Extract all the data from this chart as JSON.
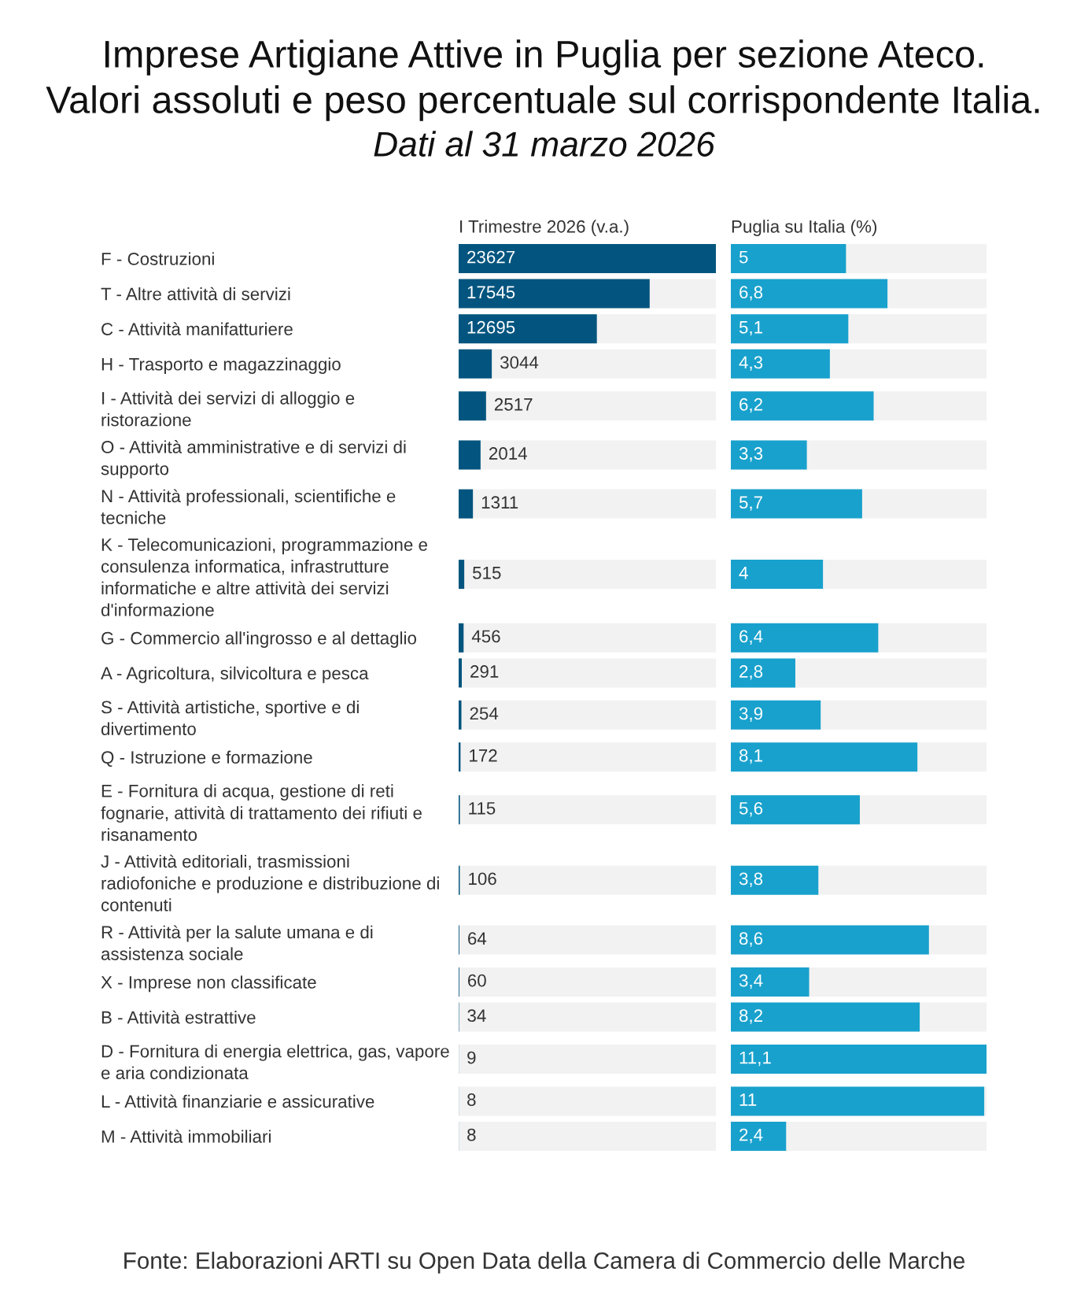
{
  "chart_data": [
    {
      "type": "bar",
      "orientation": "horizontal",
      "title": "Imprese Artigiane Attive in Puglia per sezione Ateco.\nValori assoluti e peso percentuale sul corrispondente Italia.",
      "subtitle": "Dati al 31 marzo 2026",
      "xlabel": "I Trimestre 2026 (v.a.)",
      "categories": [
        "F - Costruzioni",
        "T - Altre attività di servizi",
        "C - Attività manifatturiere",
        "H - Trasporto e magazzinaggio",
        "I - Attività dei servizi di alloggio e\nristorazione",
        "O - Attività amministrative e di servizi di\nsupporto",
        "N - Attività professionali, scientifiche e\ntecniche",
        "K - Telecomunicazioni, programmazione e\nconsulenza informatica, infrastrutture\ninformatiche e altre attività dei servizi\nd'informazione",
        "G - Commercio all'ingrosso e al dettaglio",
        "A - Agricoltura, silvicoltura e pesca",
        "S - Attività artistiche, sportive e di\ndivertimento",
        "Q - Istruzione e formazione",
        "E - Fornitura di acqua, gestione di reti\nfognarie, attività di trattamento dei rifiuti e\nrisanamento",
        "J - Attività editoriali, trasmissioni\nradiofoniche e produzione e distribuzione di\ncontenuti",
        "R - Attività per la salute umana e di\nassistenza sociale",
        "X - Imprese non classificate",
        "B - Attività estrattive",
        "D - Fornitura di energia elettrica, gas, vapore\ne aria condizionata",
        "L - Attività finanziarie e assicurative",
        "M - Attività immobiliari"
      ],
      "values": [
        23627,
        17545,
        12695,
        3044,
        2517,
        2014,
        1311,
        515,
        456,
        291,
        254,
        172,
        115,
        106,
        64,
        60,
        34,
        9,
        8,
        8
      ],
      "color": "#03557f",
      "data_labels": true,
      "tick_labels": "y",
      "bands": [
        {
          "axis": "x",
          "from": 0,
          "to": 23627,
          "color": "#f2f2f2"
        }
      ],
      "annotations": [
        "Fonte: Elaborazioni ARTI su Open Data della Camera di Commercio delle Marche"
      ]
    },
    {
      "type": "bar",
      "orientation": "horizontal",
      "xlabel": "Puglia su Italia (%)",
      "categories": [
        "F - Costruzioni",
        "T - Altre attività di servizi",
        "C - Attività manifatturiere",
        "H - Trasporto e magazzinaggio",
        "I - Attività dei servizi di alloggio e\nristorazione",
        "O - Attività amministrative e di servizi di\nsupporto",
        "N - Attività professionali, scientifiche e\ntecniche",
        "K - Telecomunicazioni, programmazione e\nconsulenza informatica, infrastrutture\ninformatiche e altre attività dei servizi\nd'informazione",
        "G - Commercio all'ingrosso e al dettaglio",
        "A - Agricoltura, silvicoltura e pesca",
        "S - Attività artistiche, sportive e di\ndivertimento",
        "Q - Istruzione e formazione",
        "E - Fornitura di acqua, gestione di reti\nfognarie, attività di trattamento dei rifiuti e\nrisanamento",
        "J - Attività editoriali, trasmissioni\nradiofoniche e produzione e distribuzione di\ncontenuti",
        "R - Attività per la salute umana e di\nassistenza sociale",
        "X - Imprese non classificate",
        "B - Attività estrattive",
        "D - Fornitura di energia elettrica, gas, vapore\ne aria condizionata",
        "L - Attività finanziarie e assicurative",
        "M - Attività immobiliari"
      ],
      "values": [
        5,
        6.8,
        5.1,
        4.3,
        6.2,
        3.3,
        5.7,
        4,
        6.4,
        2.8,
        3.9,
        8.1,
        5.6,
        3.8,
        8.6,
        3.4,
        8.2,
        11.1,
        11,
        2.4
      ],
      "value_labels": [
        "5",
        "6,8",
        "5,1",
        "4,3",
        "6,2",
        "3,3",
        "5,7",
        "4",
        "6,4",
        "2,8",
        "3,9",
        "8,1",
        "5,6",
        "3,8",
        "8,6",
        "3,4",
        "8,2",
        "11,1",
        "11",
        "2,4"
      ],
      "color": "#19a1cd",
      "tick_labels": false,
      "bands": [
        {
          "axis": "x",
          "from": 0,
          "to": 11.1,
          "color": "#f2f2f2"
        }
      ]
    }
  ]
}
